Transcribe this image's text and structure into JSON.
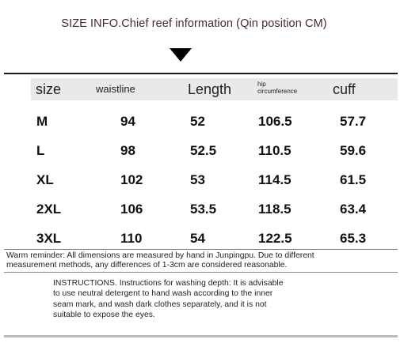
{
  "title": "SIZE INFO.Chief reef information (Qin position CM)",
  "columns": {
    "size": "size",
    "waistline": "waistline",
    "length": "Length",
    "hip_line1": "hip",
    "hip_line2": "circumference",
    "cuff": "cuff"
  },
  "rows": [
    [
      "M",
      "94",
      "52",
      "106.5",
      "57.7"
    ],
    [
      "L",
      "98",
      "52.5",
      "110.5",
      "59.6"
    ],
    [
      "XL",
      "102",
      "53",
      "114.5",
      "61.5"
    ],
    [
      "2XL",
      "106",
      "53.5",
      "118.5",
      "63.4"
    ],
    [
      "3XL",
      "110",
      "54",
      "122.5",
      "65.3"
    ]
  ],
  "reminder": {
    "line1": "Warm reminder: All dimensions are measured by hand in Junpingpu. Due to different",
    "line2": "measurement methods, any differences of 1-3cm are considered reasonable."
  },
  "instructions": {
    "line1": "INSTRUCTIONS. Instructions for washing depth: It is advisable",
    "line2": "to use neutral detergent to hand wash according to the inner",
    "line3": "seam mark, and wash dark clothes separately, and it is not",
    "line4": "suitable to expose the eyes."
  }
}
